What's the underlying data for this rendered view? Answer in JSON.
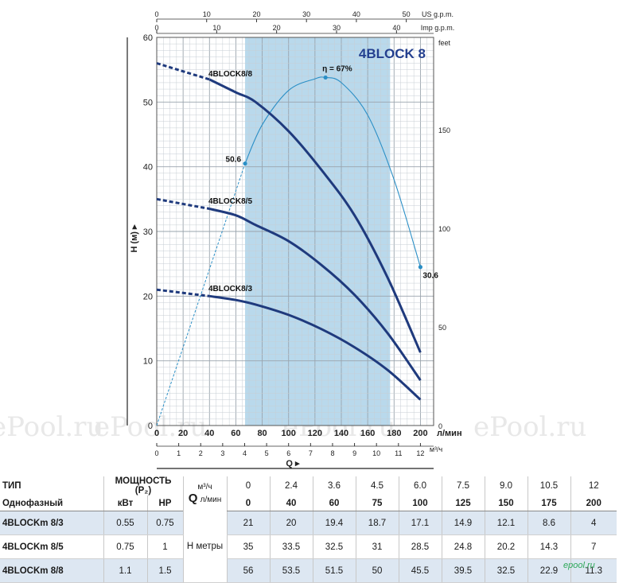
{
  "chart_data": {
    "type": "line",
    "title": "4BLOCK 8",
    "x_primary": {
      "label": "Q",
      "unit": "л/мин",
      "range": [
        0,
        210
      ],
      "ticks": [
        0,
        20,
        40,
        60,
        80,
        100,
        120,
        140,
        160,
        180,
        200
      ]
    },
    "x_m3h": {
      "unit": "м³/ч",
      "ticks": [
        0,
        1,
        2,
        3,
        4,
        5,
        6,
        7,
        8,
        9,
        10,
        11,
        12
      ]
    },
    "x_us_gpm": {
      "unit": "US g.p.m.",
      "ticks": [
        0,
        10,
        20,
        30,
        40,
        50
      ]
    },
    "x_imp_gpm": {
      "unit": "Imp g.p.m.",
      "ticks": [
        0,
        10,
        20,
        30,
        40
      ]
    },
    "y_primary": {
      "label": "H (м)",
      "range": [
        0,
        60
      ],
      "ticks": [
        0,
        10,
        20,
        30,
        40,
        50,
        60
      ]
    },
    "y_feet": {
      "unit": "feet",
      "ticks": [
        0,
        50,
        100,
        150
      ]
    },
    "operating_range": [
      67,
      177
    ],
    "grid": true,
    "series": [
      {
        "name": "4BLOCK8/8",
        "x": [
          0,
          40,
          60,
          75,
          100,
          125,
          150,
          175,
          200
        ],
        "y": [
          56,
          53.5,
          51.5,
          50,
          45.5,
          39.5,
          32.5,
          22.9,
          11.3
        ],
        "dashed_until": 40
      },
      {
        "name": "4BLOCK8/5",
        "x": [
          0,
          40,
          60,
          75,
          100,
          125,
          150,
          175,
          200
        ],
        "y": [
          35,
          33.5,
          32.5,
          31,
          28.5,
          24.8,
          20.2,
          14.3,
          7
        ],
        "dashed_until": 40
      },
      {
        "name": "4BLOCK8/3",
        "x": [
          0,
          40,
          60,
          75,
          100,
          125,
          150,
          175,
          200
        ],
        "y": [
          21,
          20,
          19.4,
          18.7,
          17.1,
          14.9,
          12.1,
          8.6,
          4
        ],
        "dashed_until": 40
      }
    ],
    "efficiency": {
      "label": "η = 67%",
      "x": [
        67,
        80,
        100,
        120,
        128,
        140,
        160,
        180,
        200
      ],
      "y": [
        40.5,
        46.5,
        51.8,
        53.6,
        53.8,
        53,
        48,
        38,
        24.5
      ],
      "points": [
        {
          "x": 67,
          "y": 40.5,
          "label": "50.6"
        },
        {
          "x": 128,
          "y": 53.8,
          "label": ""
        },
        {
          "x": 200,
          "y": 24.5,
          "label": "30.6"
        }
      ]
    }
  },
  "watermark": "ePool.ru",
  "table": {
    "header1": {
      "type": "ТИП",
      "power": "МОЩНОСТЬ (P₂)",
      "q_unit_top": "м³/ч",
      "q_m3h": [
        "0",
        "2.4",
        "3.6",
        "4.5",
        "6.0",
        "7.5",
        "9.0",
        "10.5",
        "12"
      ]
    },
    "header2": {
      "phase": "Однофазный",
      "kw": "кВт",
      "hp": "HP",
      "q_symbol": "Q",
      "q_unit_bottom": "л/мин",
      "q_lmin": [
        "0",
        "40",
        "60",
        "75",
        "100",
        "125",
        "150",
        "175",
        "200"
      ]
    },
    "h_label": "H метры",
    "rows": [
      {
        "model": "4BLOCKm 8/3",
        "kw": "0.55",
        "hp": "0.75",
        "h": [
          "21",
          "20",
          "19.4",
          "18.7",
          "17.1",
          "14.9",
          "12.1",
          "8.6",
          "4"
        ]
      },
      {
        "model": "4BLOCKm 8/5",
        "kw": "0.75",
        "hp": "1",
        "h": [
          "35",
          "33.5",
          "32.5",
          "31",
          "28.5",
          "24.8",
          "20.2",
          "14.3",
          "7"
        ]
      },
      {
        "model": "4BLOCKm 8/8",
        "kw": "1.1",
        "hp": "1.5",
        "h": [
          "56",
          "53.5",
          "51.5",
          "50",
          "45.5",
          "39.5",
          "32.5",
          "22.9",
          "11.3"
        ]
      }
    ]
  },
  "brand": "epool.ru"
}
